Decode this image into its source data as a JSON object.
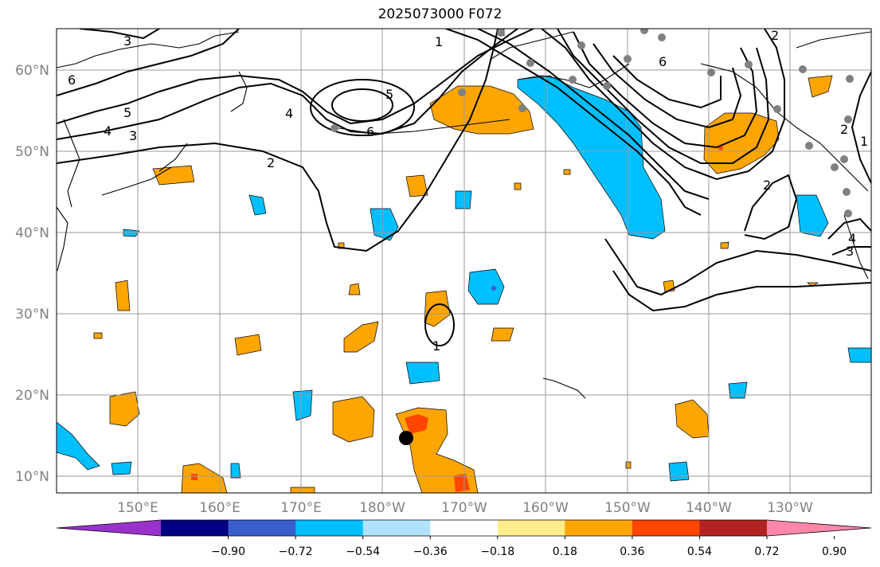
{
  "title": "2025073000 F072",
  "map": {
    "lat_labels": [
      "60°N",
      "50°N",
      "40°N",
      "30°N",
      "20°N",
      "10°N"
    ],
    "lon_labels": [
      "150°E",
      "160°E",
      "170°E",
      "180°W",
      "170°W",
      "160°W",
      "150°W",
      "140°W",
      "130°W"
    ]
  },
  "contours": {
    "labels": [
      "3",
      "6",
      "5",
      "4",
      "3",
      "2",
      "4",
      "5",
      "6",
      "1",
      "2",
      "6",
      "2",
      "2",
      "1",
      "4",
      "3",
      "2",
      "1"
    ]
  },
  "colorbar": {
    "colors": [
      "#9932cc",
      "#000080",
      "#3a5fcd",
      "#00bfff",
      "#b0e2ff",
      "#ffffff",
      "#ffec8b",
      "#ffa500",
      "#ff4500",
      "#b22222",
      "#ff88aa"
    ],
    "tick_labels": [
      "-0.90",
      "-0.72",
      "-0.54",
      "-0.36",
      "-0.18",
      "0.18",
      "0.36",
      "0.54",
      "0.72",
      "0.90"
    ]
  },
  "colors": {
    "blue_fill": "#00bfff",
    "orange_fill": "#ffa500",
    "red_fill": "#ff4500",
    "station_dot": "#808080"
  }
}
